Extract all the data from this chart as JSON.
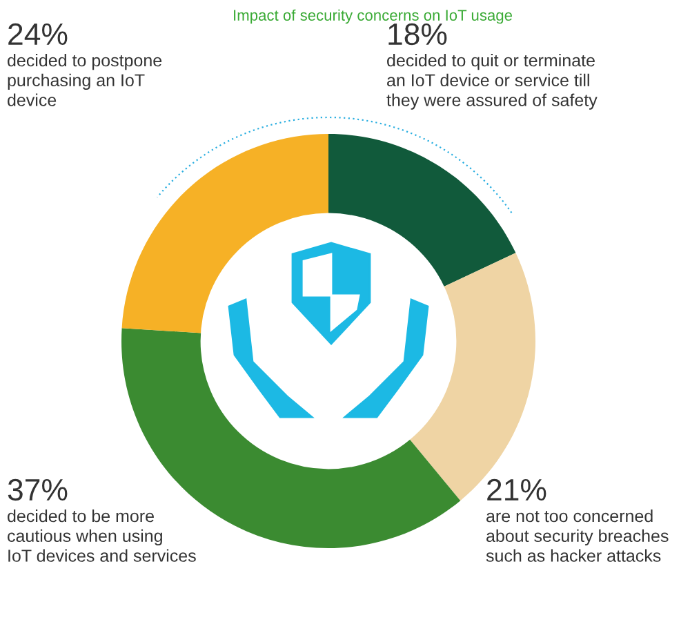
{
  "chart_data": {
    "type": "donut",
    "title": "Impact of security concerns on IoT usage",
    "categories": [
      "decided to quit or terminate\nan IoT device or service till\nthey were assured of safety",
      "are not too concerned\nabout security breaches\nsuch as hacker attacks",
      "decided to be more\ncautious when using\nIoT devices and services",
      "decided to postpone\npurchasing an IoT\ndevice"
    ],
    "values": [
      18,
      21,
      37,
      24
    ],
    "value_labels": [
      "18%",
      "21%",
      "37%",
      "24%"
    ],
    "colors": [
      "#115a3b",
      "#efd4a4",
      "#3b8b31",
      "#f6b126"
    ]
  }
}
